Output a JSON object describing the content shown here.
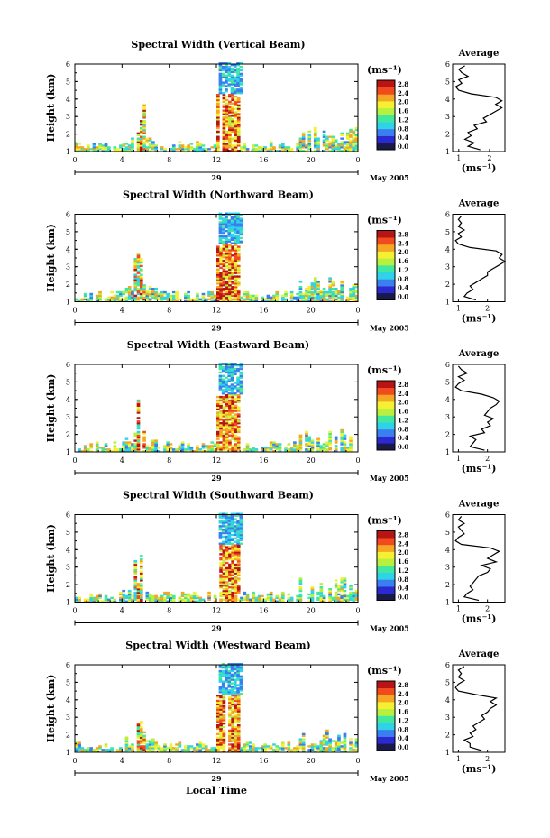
{
  "colorbar": {
    "unit_label": "(ms⁻¹)",
    "ticks": [
      "0.0",
      "0.4",
      "0.8",
      "1.2",
      "1.6",
      "2.0",
      "2.4",
      "2.8"
    ],
    "colors": [
      "#1a1a4a",
      "#2a2ad0",
      "#3a7ef0",
      "#2fd3e8",
      "#42e8a0",
      "#b8f040",
      "#f5f032",
      "#f5a623",
      "#f04a1e",
      "#b81414"
    ]
  },
  "date_label": "May 2005",
  "day_label": "29",
  "xlabel": "Local Time",
  "ylabel": "Height (km)",
  "x_ticks": [
    "0",
    "4",
    "8",
    "12",
    "16",
    "20",
    "0"
  ],
  "y_ticks": [
    "1",
    "2",
    "3",
    "4",
    "5",
    "6"
  ],
  "chart_data": [
    {
      "type": "heatmap",
      "title": "Spectral Width (Vertical Beam)",
      "xlim": [
        0,
        24
      ],
      "ylim": [
        1,
        6
      ],
      "avg_title": "Average",
      "avg_xlabel": "(ms⁻¹)",
      "avg_xticks": [
        1,
        2
      ],
      "avg_xlim": [
        0.8,
        2.5
      ],
      "avg_profile": {
        "height": [
          1.1,
          1.3,
          1.5,
          1.7,
          1.9,
          2.1,
          2.3,
          2.5,
          2.7,
          2.9,
          3.1,
          3.3,
          3.5,
          3.7,
          3.9,
          4.1,
          4.3,
          4.5,
          4.7,
          4.9,
          5.1,
          5.3,
          5.5,
          5.7,
          5.9
        ],
        "width": [
          1.7,
          1.3,
          1.5,
          1.2,
          1.4,
          1.3,
          1.6,
          1.5,
          1.9,
          1.8,
          2.0,
          2.2,
          2.4,
          2.2,
          2.4,
          2.2,
          1.4,
          1.0,
          0.9,
          1.1,
          1.0,
          1.3,
          1.1,
          1.0,
          1.2
        ]
      }
    },
    {
      "type": "heatmap",
      "title": "Spectral Width (Northward Beam)",
      "xlim": [
        0,
        24
      ],
      "ylim": [
        1,
        6
      ],
      "avg_title": "Average",
      "avg_xlabel": "(ms⁻¹)",
      "avg_xticks": [
        1,
        2
      ],
      "avg_xlim": [
        0.8,
        2.6
      ],
      "avg_profile": {
        "height": [
          1.1,
          1.3,
          1.5,
          1.7,
          1.9,
          2.1,
          2.3,
          2.5,
          2.7,
          2.9,
          3.1,
          3.3,
          3.5,
          3.7,
          3.9,
          4.1,
          4.3,
          4.5,
          4.7,
          4.9,
          5.1,
          5.3,
          5.5,
          5.7,
          5.9
        ],
        "width": [
          1.6,
          1.2,
          1.3,
          1.5,
          1.4,
          1.6,
          1.8,
          2.0,
          2.0,
          2.2,
          2.4,
          2.6,
          2.4,
          2.5,
          2.3,
          1.4,
          1.0,
          0.9,
          1.1,
          1.0,
          1.2,
          1.0,
          1.1,
          1.0,
          1.1
        ]
      }
    },
    {
      "type": "heatmap",
      "title": "Spectral Width (Eastward Beam)",
      "xlim": [
        0,
        24
      ],
      "ylim": [
        1,
        6
      ],
      "avg_title": "Average",
      "avg_xlabel": "(ms⁻¹)",
      "avg_xticks": [
        1,
        2
      ],
      "avg_xlim": [
        0.8,
        2.6
      ],
      "avg_profile": {
        "height": [
          1.1,
          1.3,
          1.5,
          1.7,
          1.9,
          2.1,
          2.3,
          2.5,
          2.7,
          2.9,
          3.1,
          3.3,
          3.5,
          3.7,
          3.9,
          4.1,
          4.3,
          4.5,
          4.7,
          4.9,
          5.1,
          5.3,
          5.5,
          5.7,
          5.9
        ],
        "width": [
          1.9,
          1.4,
          1.5,
          1.6,
          1.4,
          1.9,
          1.8,
          2.1,
          2.0,
          2.2,
          1.9,
          2.0,
          2.1,
          2.3,
          2.4,
          2.2,
          1.8,
          1.1,
          0.9,
          1.0,
          1.2,
          1.0,
          1.3,
          1.1,
          1.0
        ]
      }
    },
    {
      "type": "heatmap",
      "title": "Spectral Width (Southward Beam)",
      "xlim": [
        0,
        24
      ],
      "ylim": [
        1,
        6
      ],
      "avg_title": "Average",
      "avg_xlabel": "(ms⁻¹)",
      "avg_xticks": [
        1,
        2
      ],
      "avg_xlim": [
        0.8,
        2.6
      ],
      "avg_profile": {
        "height": [
          1.1,
          1.3,
          1.5,
          1.7,
          1.9,
          2.1,
          2.3,
          2.5,
          2.7,
          2.9,
          3.1,
          3.3,
          3.5,
          3.7,
          3.9,
          4.1,
          4.3,
          4.5,
          4.7,
          4.9,
          5.1,
          5.3,
          5.5,
          5.7,
          5.9
        ],
        "width": [
          1.7,
          1.2,
          1.3,
          1.5,
          1.4,
          1.5,
          1.6,
          1.7,
          2.0,
          2.1,
          1.8,
          2.3,
          2.0,
          2.2,
          2.4,
          2.1,
          1.1,
          0.9,
          1.0,
          1.2,
          1.1,
          1.0,
          1.2,
          1.0,
          1.1
        ]
      }
    },
    {
      "type": "heatmap",
      "title": "Spectral Width (Westward Beam)",
      "xlim": [
        0,
        24
      ],
      "ylim": [
        1,
        6
      ],
      "avg_title": "Average",
      "avg_xlabel": "(ms⁻¹)",
      "avg_xticks": [
        1,
        2
      ],
      "avg_xlim": [
        0.8,
        2.6
      ],
      "avg_profile": {
        "height": [
          1.1,
          1.3,
          1.5,
          1.7,
          1.9,
          2.1,
          2.3,
          2.5,
          2.7,
          2.9,
          3.1,
          3.3,
          3.5,
          3.7,
          3.9,
          4.1,
          4.3,
          4.5,
          4.7,
          4.9,
          5.1,
          5.3,
          5.5,
          5.7,
          5.9
        ],
        "width": [
          1.8,
          1.4,
          1.4,
          1.2,
          1.5,
          1.4,
          1.6,
          1.5,
          1.7,
          1.9,
          1.8,
          2.0,
          2.1,
          2.3,
          2.1,
          2.3,
          1.6,
          1.0,
          0.9,
          1.0,
          1.2,
          1.0,
          1.1,
          1.0,
          1.2
        ]
      }
    }
  ]
}
